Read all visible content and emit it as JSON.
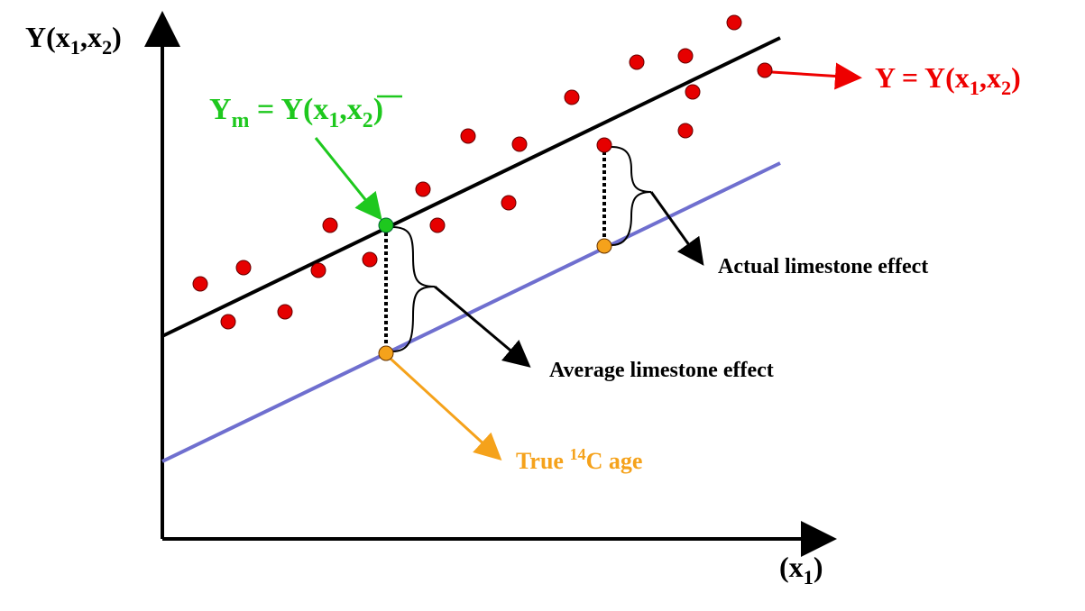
{
  "y_axis_label": [
    "Y(x",
    "1",
    ",x",
    "2",
    ")"
  ],
  "x_axis_label": [
    "(x",
    "1",
    ")"
  ],
  "model_label": [
    "Y",
    "m",
    " = Y(x",
    "1",
    ",",
    "x",
    "2",
    ")"
  ],
  "observed_label": [
    "Y = Y(x",
    "1",
    ",x",
    "2",
    ")"
  ],
  "actual_effect_label": "Actual limestone effect",
  "average_effect_label": "Average limestone effect",
  "true_age_label": [
    "True ",
    "14",
    "C age"
  ]
}
